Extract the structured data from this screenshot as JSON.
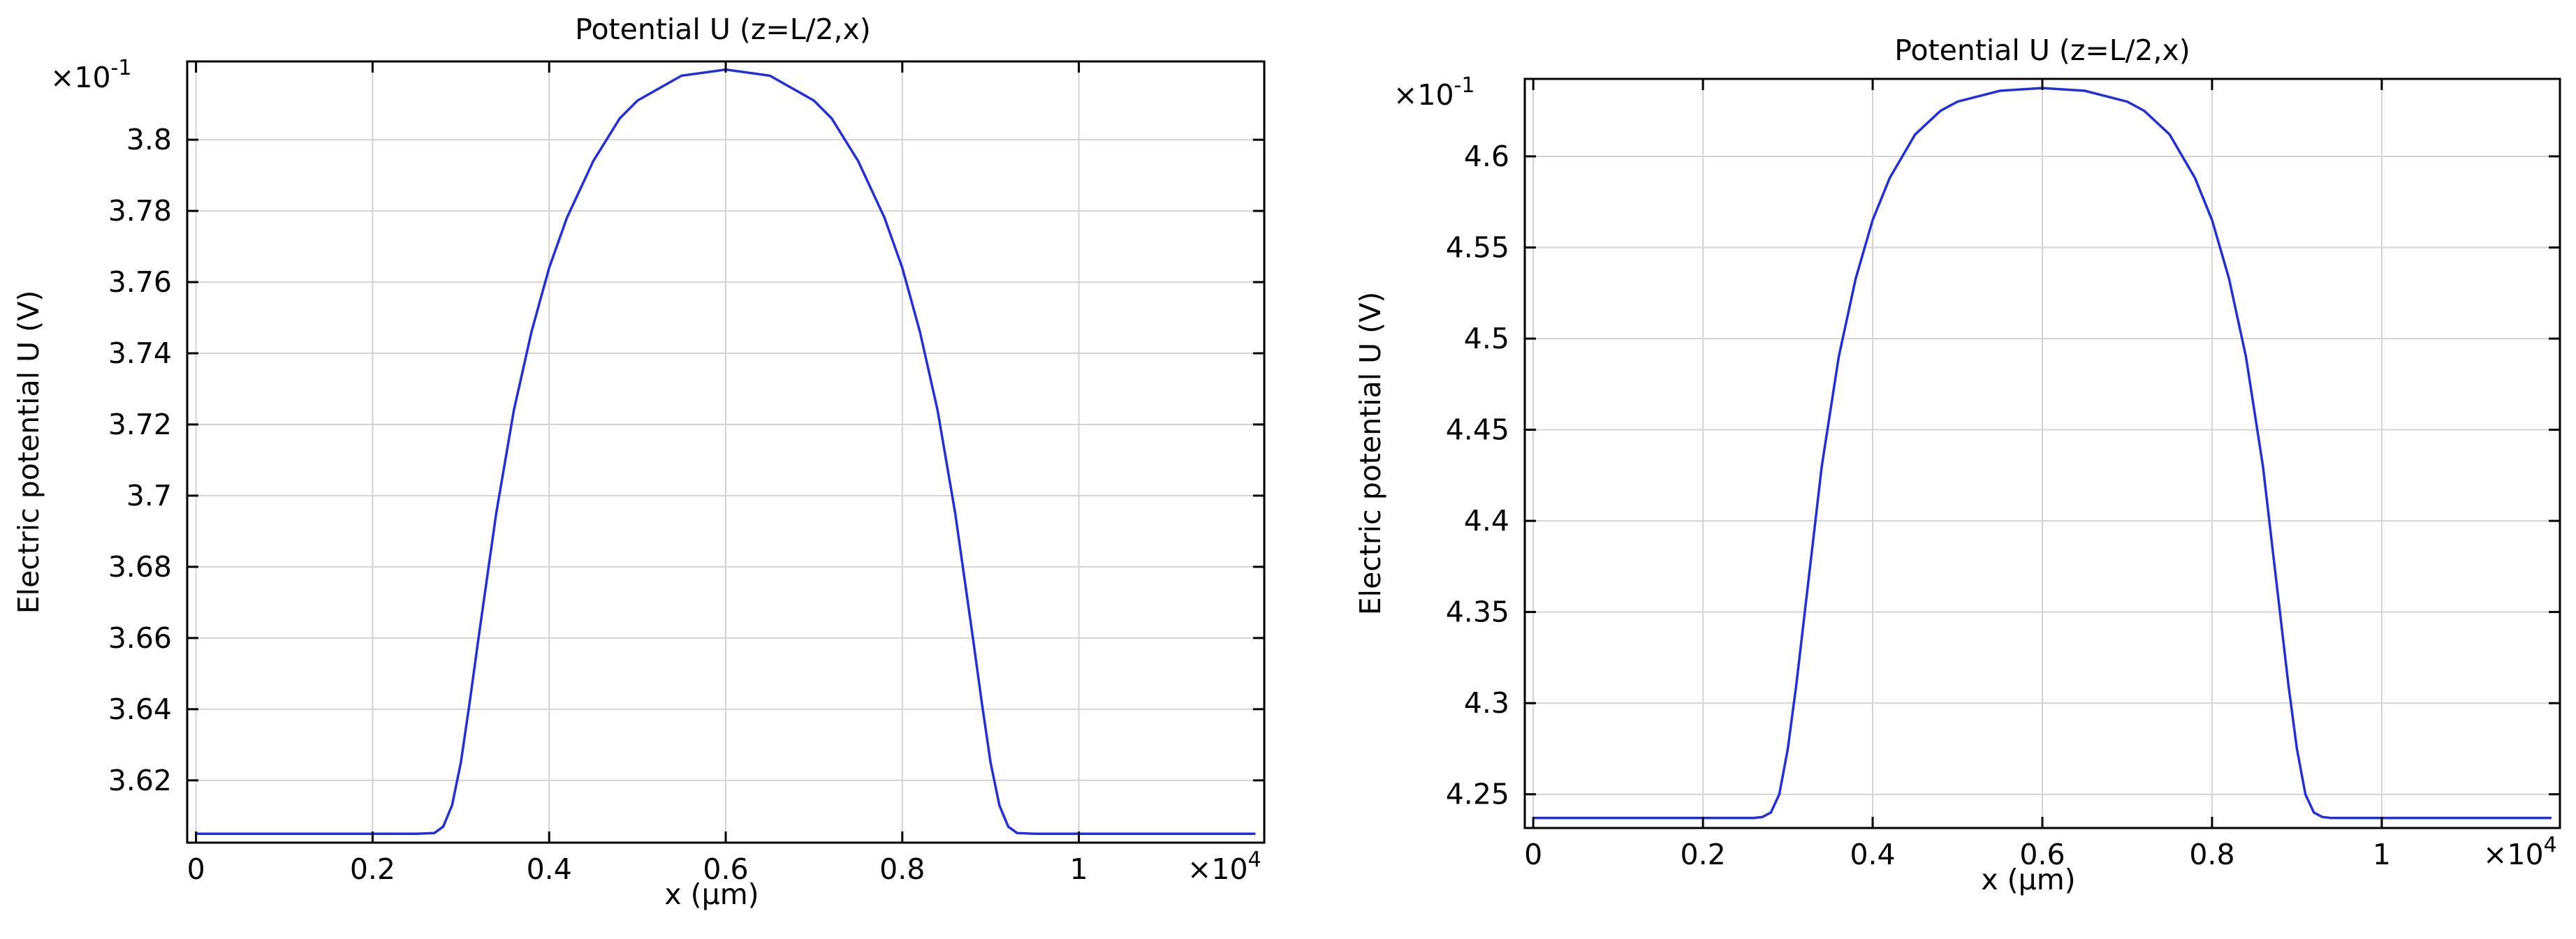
{
  "colors": {
    "line": "#1f2fe0",
    "grid": "#d4d4d4"
  },
  "chart_data": [
    {
      "type": "line",
      "title": "Potential U (z=L/2,x)",
      "xlabel": "x (µm)",
      "ylabel": "Electric potential U (V)",
      "x_multiplier": "×10",
      "x_multiplier_exp": "4",
      "y_multiplier": "×10",
      "y_multiplier_exp": "-1",
      "xlim": [
        -0.01,
        1.21
      ],
      "ylim": [
        3.6025,
        3.822
      ],
      "grid": true,
      "xticks": [
        0,
        0.2,
        0.4,
        0.6,
        0.8,
        1
      ],
      "xtick_labels": [
        "0",
        "0.2",
        "0.4",
        "0.6",
        "0.8",
        "1"
      ],
      "yticks": [
        3.62,
        3.64,
        3.66,
        3.68,
        3.7,
        3.72,
        3.74,
        3.76,
        3.78,
        3.8
      ],
      "ytick_labels": [
        "3.62",
        "3.64",
        "3.66",
        "3.68",
        "3.7",
        "3.72",
        "3.74",
        "3.76",
        "3.78",
        "3.8"
      ],
      "series": [
        {
          "x": [
            0,
            0.1,
            0.2,
            0.25,
            0.27,
            0.28,
            0.29,
            0.3,
            0.31,
            0.32,
            0.34,
            0.36,
            0.38,
            0.4,
            0.42,
            0.45,
            0.48,
            0.5,
            0.55,
            0.6,
            0.65,
            0.7,
            0.72,
            0.75,
            0.78,
            0.8,
            0.82,
            0.84,
            0.86,
            0.88,
            0.89,
            0.9,
            0.91,
            0.92,
            0.93,
            0.95,
            1,
            1.1,
            1.2
          ],
          "values": [
            3.605,
            3.605,
            3.605,
            3.605,
            3.6052,
            3.607,
            3.613,
            3.625,
            3.642,
            3.66,
            3.695,
            3.724,
            3.746,
            3.764,
            3.778,
            3.794,
            3.806,
            3.811,
            3.818,
            3.8197,
            3.818,
            3.811,
            3.806,
            3.794,
            3.778,
            3.764,
            3.746,
            3.724,
            3.695,
            3.66,
            3.642,
            3.625,
            3.613,
            3.607,
            3.6052,
            3.605,
            3.605,
            3.605,
            3.605
          ]
        }
      ]
    },
    {
      "type": "line",
      "title": "Potential U (z=L/2,x)",
      "xlabel": "x (µm)",
      "ylabel": "Electric potential U (V)",
      "x_multiplier": "×10",
      "x_multiplier_exp": "4",
      "y_multiplier": "×10",
      "y_multiplier_exp": "-1",
      "xlim": [
        -0.01,
        1.21
      ],
      "ylim": [
        4.2315,
        4.6425
      ],
      "grid": true,
      "xticks": [
        0,
        0.2,
        0.4,
        0.6,
        0.8,
        1
      ],
      "xtick_labels": [
        "0",
        "0.2",
        "0.4",
        "0.6",
        "0.8",
        "1"
      ],
      "yticks": [
        4.25,
        4.3,
        4.35,
        4.4,
        4.45,
        4.5,
        4.55,
        4.6
      ],
      "ytick_labels": [
        "4.25",
        "4.3",
        "4.35",
        "4.4",
        "4.45",
        "4.5",
        "4.55",
        "4.6"
      ],
      "series": [
        {
          "x": [
            0,
            0.1,
            0.2,
            0.26,
            0.27,
            0.28,
            0.29,
            0.3,
            0.31,
            0.32,
            0.34,
            0.36,
            0.38,
            0.4,
            0.42,
            0.45,
            0.48,
            0.5,
            0.55,
            0.6,
            0.65,
            0.7,
            0.72,
            0.75,
            0.78,
            0.8,
            0.82,
            0.84,
            0.86,
            0.88,
            0.89,
            0.9,
            0.91,
            0.92,
            0.93,
            0.94,
            1,
            1.1,
            1.2
          ],
          "values": [
            4.237,
            4.237,
            4.237,
            4.237,
            4.2375,
            4.24,
            4.25,
            4.275,
            4.31,
            4.35,
            4.43,
            4.49,
            4.533,
            4.565,
            4.588,
            4.612,
            4.625,
            4.63,
            4.636,
            4.6375,
            4.636,
            4.63,
            4.625,
            4.612,
            4.588,
            4.565,
            4.533,
            4.49,
            4.43,
            4.35,
            4.31,
            4.275,
            4.25,
            4.24,
            4.2375,
            4.237,
            4.237,
            4.237,
            4.237
          ]
        }
      ]
    }
  ]
}
